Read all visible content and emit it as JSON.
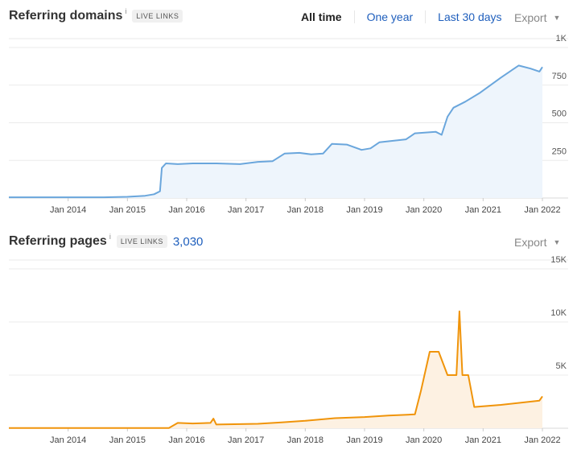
{
  "domains_panel": {
    "title": "Referring domains",
    "info": "i",
    "badge": "LIVE LINKS",
    "tabs": [
      "All time",
      "One year",
      "Last 30 days"
    ],
    "active_tab": "All time",
    "export_label": "Export"
  },
  "pages_panel": {
    "title": "Referring pages",
    "info": "i",
    "badge": "LIVE LINKS",
    "total": "3,030",
    "export_label": "Export"
  },
  "chart_data": [
    {
      "type": "area",
      "x_ticks": [
        "Jan 2014",
        "Jan 2015",
        "Jan 2016",
        "Jan 2017",
        "Jan 2018",
        "Jan 2019",
        "Jan 2020",
        "Jan 2021",
        "Jan 2022"
      ],
      "y_ticks": [
        "250",
        "500",
        "750",
        "1K"
      ],
      "ylim": [
        0,
        1000
      ],
      "grid": true,
      "color": "#6aa6dc",
      "fill": "#eef5fc",
      "points": [
        [
          2013.0,
          5
        ],
        [
          2014.0,
          5
        ],
        [
          2014.6,
          5
        ],
        [
          2015.0,
          8
        ],
        [
          2015.3,
          15
        ],
        [
          2015.45,
          25
        ],
        [
          2015.55,
          45
        ],
        [
          2015.58,
          200
        ],
        [
          2015.65,
          230
        ],
        [
          2015.85,
          225
        ],
        [
          2016.1,
          230
        ],
        [
          2016.5,
          230
        ],
        [
          2016.9,
          225
        ],
        [
          2017.2,
          240
        ],
        [
          2017.45,
          245
        ],
        [
          2017.65,
          295
        ],
        [
          2017.9,
          300
        ],
        [
          2018.1,
          290
        ],
        [
          2018.3,
          295
        ],
        [
          2018.45,
          360
        ],
        [
          2018.7,
          355
        ],
        [
          2018.95,
          320
        ],
        [
          2019.1,
          330
        ],
        [
          2019.25,
          370
        ],
        [
          2019.7,
          390
        ],
        [
          2019.85,
          430
        ],
        [
          2020.2,
          440
        ],
        [
          2020.3,
          420
        ],
        [
          2020.4,
          540
        ],
        [
          2020.5,
          600
        ],
        [
          2020.7,
          640
        ],
        [
          2020.95,
          700
        ],
        [
          2021.3,
          800
        ],
        [
          2021.6,
          880
        ],
        [
          2021.8,
          860
        ],
        [
          2021.95,
          840
        ],
        [
          2022.0,
          870
        ]
      ]
    },
    {
      "type": "area",
      "x_ticks": [
        "Jan 2014",
        "Jan 2015",
        "Jan 2016",
        "Jan 2017",
        "Jan 2018",
        "Jan 2019",
        "Jan 2020",
        "Jan 2021",
        "Jan 2022"
      ],
      "y_ticks": [
        "5K",
        "10K",
        "15K"
      ],
      "ylim": [
        0,
        15000
      ],
      "grid": true,
      "color": "#f0940a",
      "fill": "#fdf1e2",
      "points": [
        [
          2013.0,
          20
        ],
        [
          2015.7,
          20
        ],
        [
          2015.85,
          500
        ],
        [
          2016.1,
          450
        ],
        [
          2016.4,
          500
        ],
        [
          2016.45,
          900
        ],
        [
          2016.5,
          350
        ],
        [
          2017.2,
          420
        ],
        [
          2017.6,
          550
        ],
        [
          2018.0,
          700
        ],
        [
          2018.5,
          950
        ],
        [
          2019.0,
          1050
        ],
        [
          2019.4,
          1200
        ],
        [
          2019.85,
          1300
        ],
        [
          2019.95,
          3500
        ],
        [
          2020.1,
          7200
        ],
        [
          2020.25,
          7200
        ],
        [
          2020.4,
          5000
        ],
        [
          2020.55,
          5000
        ],
        [
          2020.6,
          11000
        ],
        [
          2020.65,
          5000
        ],
        [
          2020.75,
          5000
        ],
        [
          2020.85,
          2000
        ],
        [
          2021.3,
          2200
        ],
        [
          2021.95,
          2600
        ],
        [
          2022.0,
          3000
        ]
      ]
    }
  ]
}
